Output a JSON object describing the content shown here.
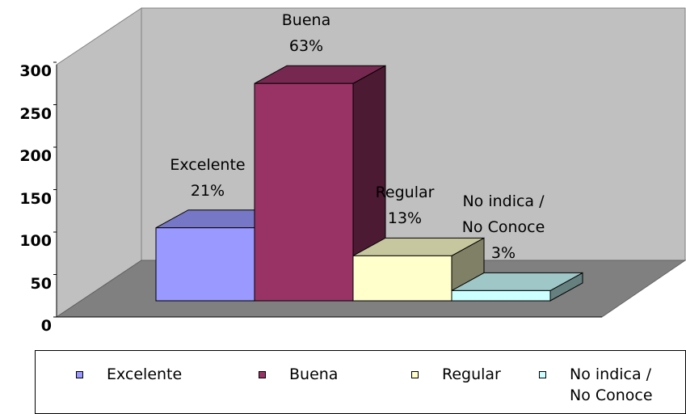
{
  "chart_data": {
    "type": "bar3d",
    "categories": [
      "Excelente",
      "Buena",
      "Regular",
      "No indica / No Conoce"
    ],
    "values": [
      86,
      256,
      53,
      12
    ],
    "data_labels": [
      "21%",
      "63%",
      "13%",
      "3%"
    ],
    "colors": [
      "#9999ff",
      "#993366",
      "#ffffcc",
      "#ccffff"
    ],
    "ylim": [
      0,
      300
    ],
    "yticks": [
      0,
      50,
      100,
      150,
      200,
      250,
      300
    ],
    "legend": "bottom"
  }
}
